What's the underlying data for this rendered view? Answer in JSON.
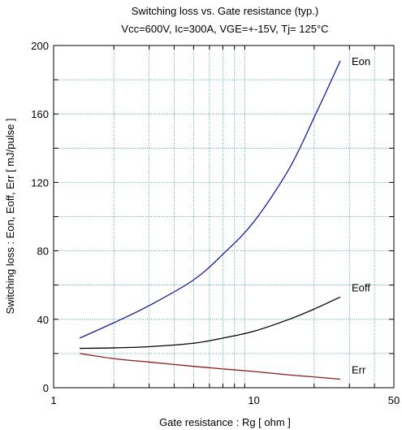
{
  "chart_data": {
    "type": "line",
    "title": "Switching loss  vs.  Gate resistance (typ.)",
    "subtitle": "Vcc=600V, Ic=300A, VGE=+-15V, Tj= 125°C",
    "xlabel": "Gate resistance  :  Rg  [ ohm ]",
    "ylabel": "Switching loss  :  Eon, Eoff, Err  [ mJ/pulse ]",
    "xscale": "log",
    "xlim": [
      1,
      50
    ],
    "ylim": [
      0,
      200
    ],
    "xticks": [
      1,
      10,
      50
    ],
    "yticks": [
      0,
      40,
      80,
      120,
      160,
      200
    ],
    "grid": true,
    "series": [
      {
        "name": "Eon",
        "color": "#1a1a9a",
        "x": [
          1.35,
          2,
          3,
          5,
          7,
          10,
          15,
          20,
          27
        ],
        "y": [
          29,
          38,
          48,
          63,
          78,
          97,
          128,
          158,
          191
        ]
      },
      {
        "name": "Eoff",
        "color": "#000000",
        "x": [
          1.35,
          2,
          3,
          5,
          7,
          10,
          15,
          20,
          27
        ],
        "y": [
          23,
          23.3,
          24,
          26,
          29,
          33,
          40,
          46,
          53
        ]
      },
      {
        "name": "Err",
        "color": "#8b1a1a",
        "x": [
          1.35,
          2,
          3,
          5,
          7,
          10,
          15,
          20,
          27
        ],
        "y": [
          20,
          17,
          15,
          12.5,
          11,
          9.5,
          7.5,
          6.3,
          5
        ]
      }
    ]
  }
}
